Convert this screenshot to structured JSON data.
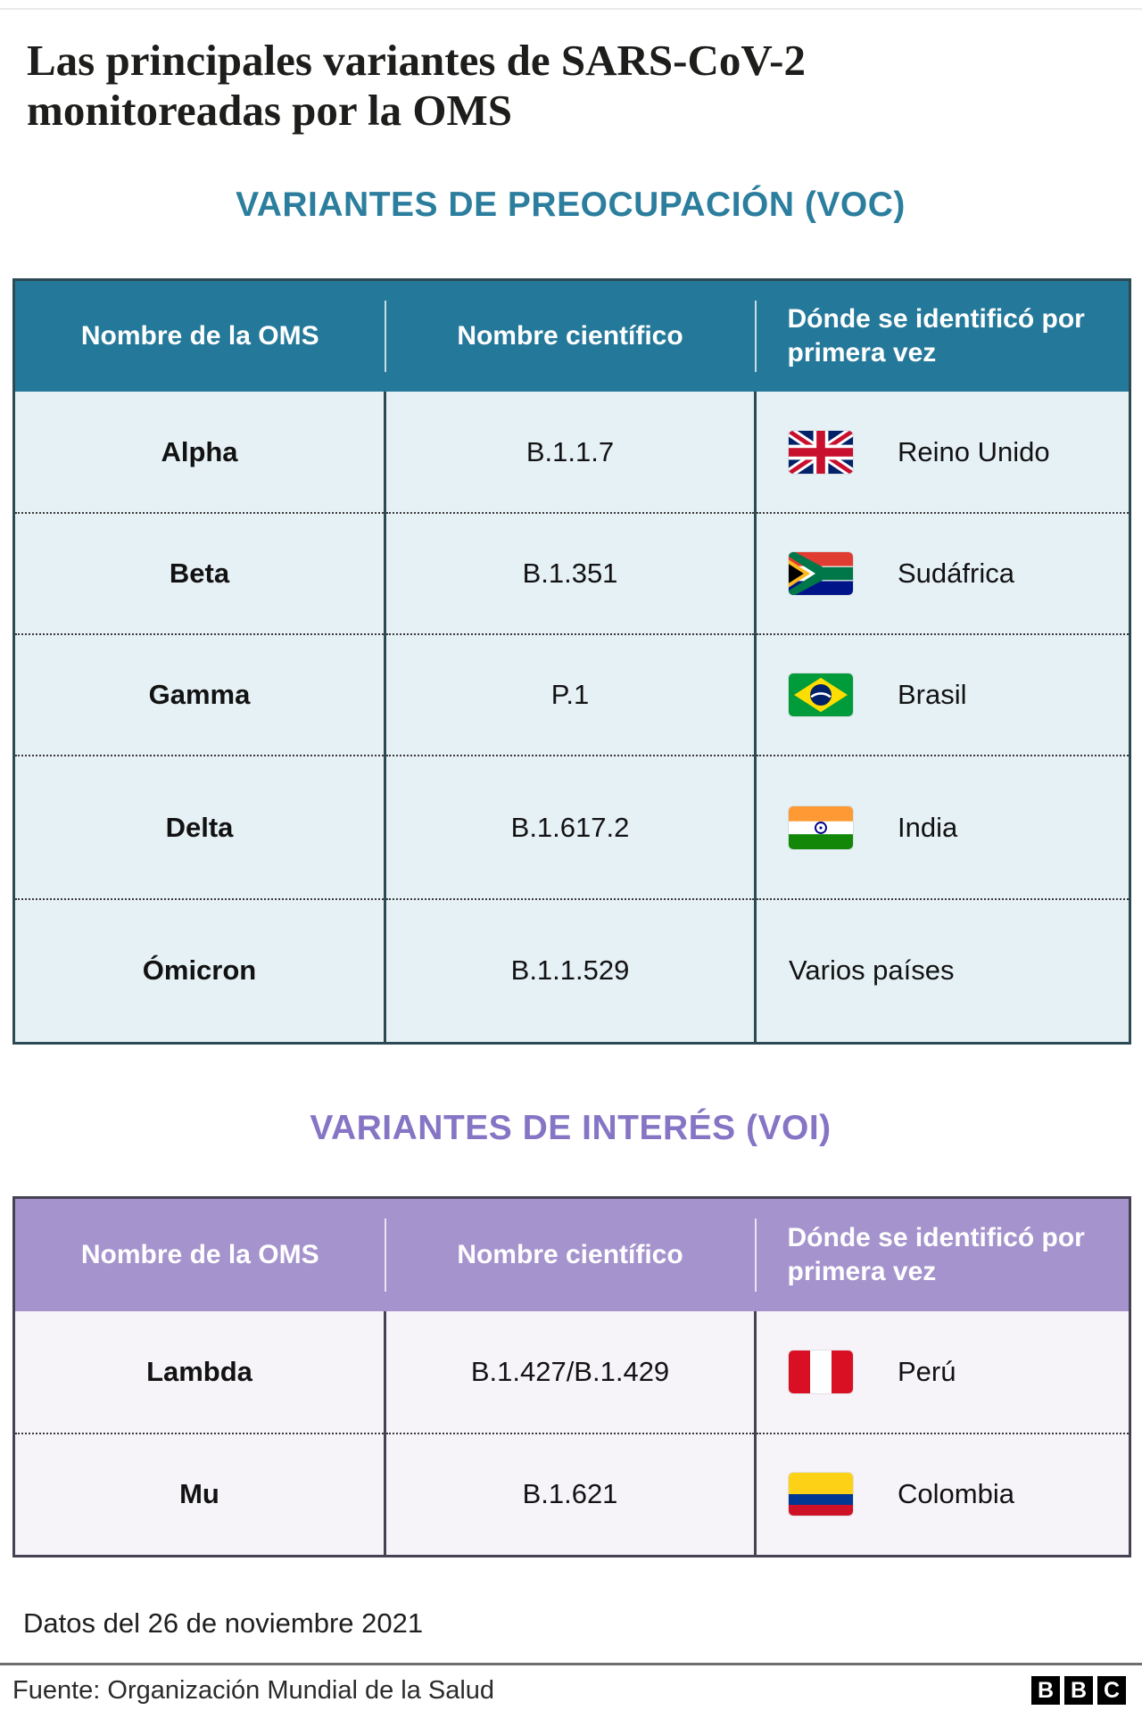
{
  "title": "Las principales variantes de SARS-CoV-2 monitoreadas por la OMS",
  "colors": {
    "title_text": "#1d1d1b",
    "voc_accent": "#2b7e9d",
    "voc_header_bg": "#24799a",
    "voc_header_text": "#ffffff",
    "voc_row_bg": "#e6f1f6",
    "voc_border": "#2c4a54",
    "voi_accent": "#8674c5",
    "voi_header_bg": "#a593cd",
    "voi_header_text": "#ffffff",
    "voi_row_bg": "#f6f4f9",
    "voi_border": "#474253"
  },
  "sections": [
    {
      "id": "voc",
      "heading": "VARIANTES DE PREOCUPACIÓN (VOC)",
      "table": {
        "headers": [
          "Nombre de la OMS",
          "Nombre científico",
          "Dónde se identificó por primera vez"
        ],
        "rows": [
          {
            "who_name": "Alpha",
            "scientific_name": "B.1.1.7",
            "country": "Reino Unido",
            "flag": "uk",
            "flag_icon": "uk-flag-icon"
          },
          {
            "who_name": "Beta",
            "scientific_name": "B.1.351",
            "country": "Sudáfrica",
            "flag": "za",
            "flag_icon": "south-africa-flag-icon"
          },
          {
            "who_name": "Gamma",
            "scientific_name": "P.1",
            "country": "Brasil",
            "flag": "br",
            "flag_icon": "brazil-flag-icon"
          },
          {
            "who_name": "Delta",
            "scientific_name": "B.1.617.2",
            "country": "India",
            "flag": "in",
            "flag_icon": "india-flag-icon"
          },
          {
            "who_name": "Ómicron",
            "scientific_name": "B.1.1.529",
            "country": "Varios países",
            "flag": null,
            "flag_icon": null
          }
        ]
      }
    },
    {
      "id": "voi",
      "heading": "VARIANTES DE INTERÉS (VOI)",
      "table": {
        "headers": [
          "Nombre de la OMS",
          "Nombre científico",
          "Dónde se identificó por primera vez"
        ],
        "rows": [
          {
            "who_name": "Lambda",
            "scientific_name": "B.1.427/B.1.429",
            "country": "Perú",
            "flag": "pe",
            "flag_icon": "peru-flag-icon"
          },
          {
            "who_name": "Mu",
            "scientific_name": "B.1.621",
            "country": "Colombia",
            "flag": "co",
            "flag_icon": "colombia-flag-icon"
          }
        ]
      }
    }
  ],
  "footer": {
    "data_note": "Datos del 26 de noviembre 2021",
    "source": "Fuente: Organización Mundial de la Salud",
    "logo_letters": [
      "B",
      "B",
      "C"
    ]
  },
  "chart_data": [
    {
      "type": "table",
      "title": "VARIANTES DE PREOCUPACIÓN (VOC)",
      "columns": [
        "Nombre de la OMS",
        "Nombre científico",
        "Dónde se identificó por primera vez"
      ],
      "rows": [
        [
          "Alpha",
          "B.1.1.7",
          "Reino Unido"
        ],
        [
          "Beta",
          "B.1.351",
          "Sudáfrica"
        ],
        [
          "Gamma",
          "P.1",
          "Brasil"
        ],
        [
          "Delta",
          "B.1.617.2",
          "India"
        ],
        [
          "Ómicron",
          "B.1.1.529",
          "Varios países"
        ]
      ]
    },
    {
      "type": "table",
      "title": "VARIANTES DE INTERÉS (VOI)",
      "columns": [
        "Nombre de la OMS",
        "Nombre científico",
        "Dónde se identificó por primera vez"
      ],
      "rows": [
        [
          "Lambda",
          "B.1.427/B.1.429",
          "Perú"
        ],
        [
          "Mu",
          "B.1.621",
          "Colombia"
        ]
      ]
    }
  ]
}
